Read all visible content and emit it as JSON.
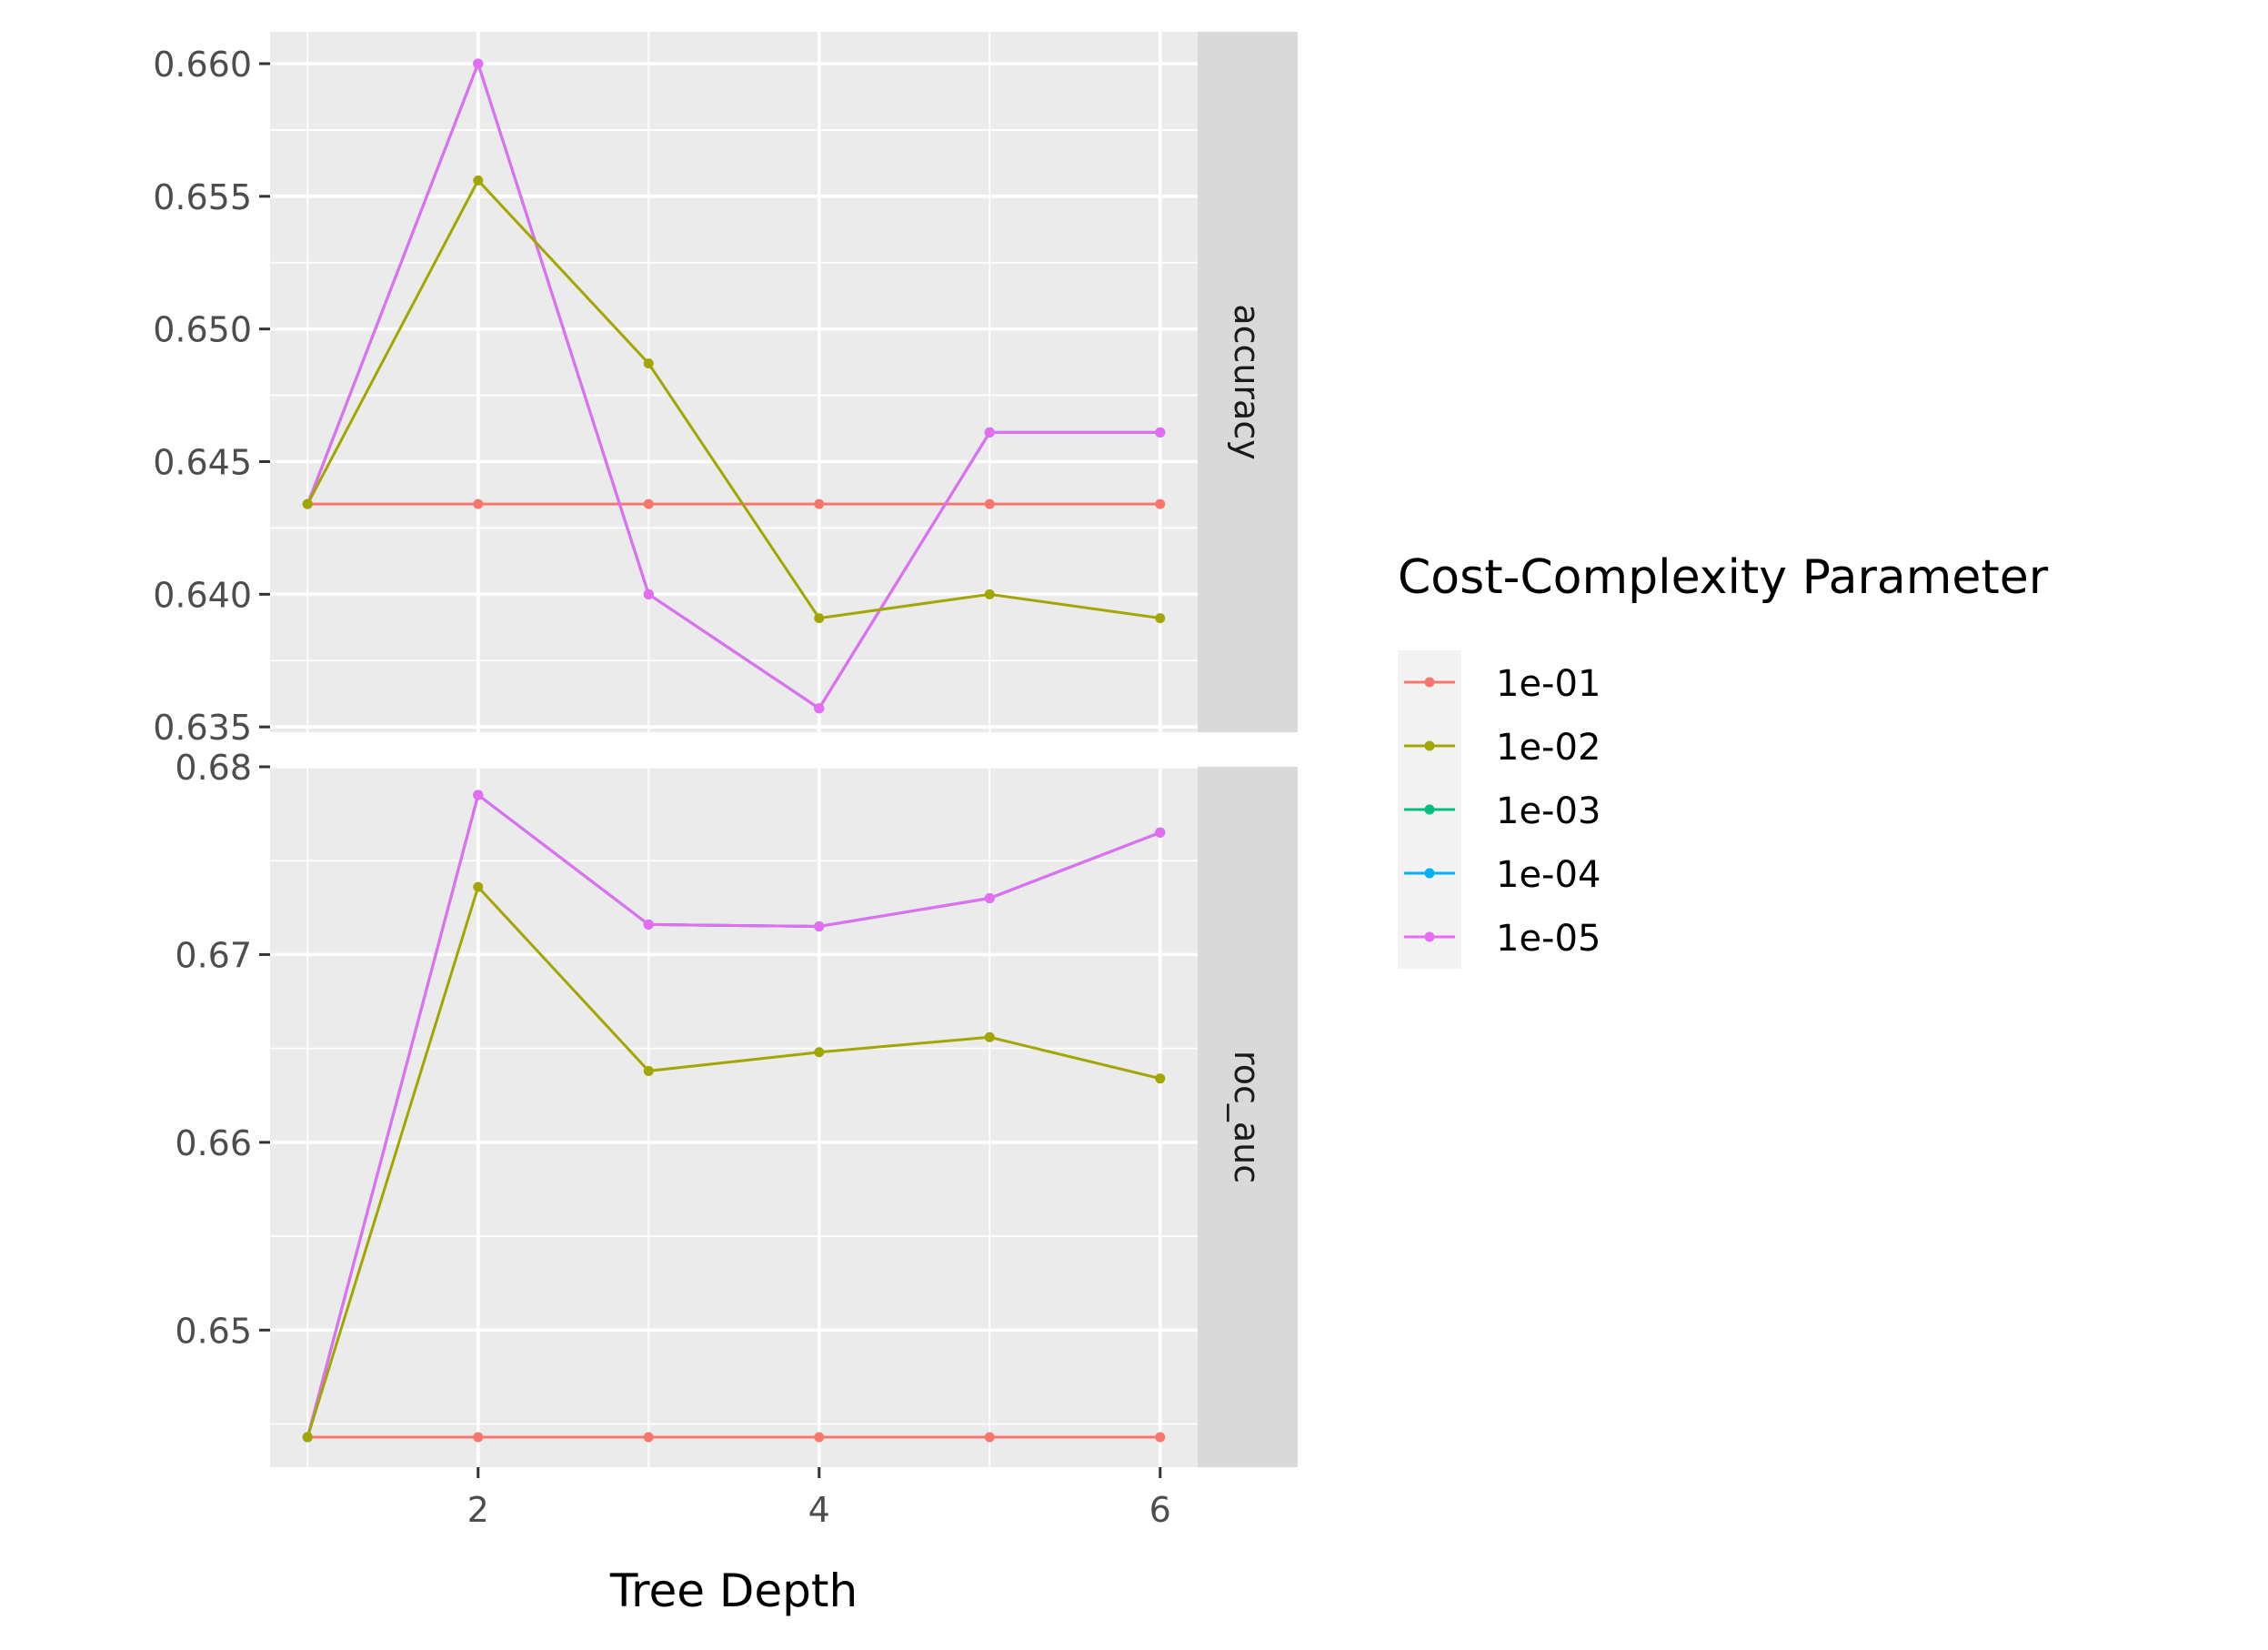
{
  "chart_data": {
    "type": "line",
    "xlabel": "Tree Depth",
    "x": [
      1,
      2,
      3,
      4,
      5,
      6
    ],
    "x_ticks": [
      "2",
      "4",
      "6"
    ],
    "x_tick_values": [
      2,
      4,
      6
    ],
    "xlim": [
      0.78,
      6.22
    ],
    "legend": {
      "title": "Cost-Complexity Parameter",
      "position": "right",
      "entries": [
        {
          "label": "1e-01",
          "color": "#F8766D"
        },
        {
          "label": "1e-02",
          "color": "#A3A500"
        },
        {
          "label": "1e-03",
          "color": "#00BF7D"
        },
        {
          "label": "1e-04",
          "color": "#00B0F6"
        },
        {
          "label": "1e-05",
          "color": "#E76BF3"
        }
      ]
    },
    "grid": true,
    "panels": [
      {
        "strip": "accuracy",
        "ylim": [
          0.6348,
          0.6612
        ],
        "y_ticks": [
          "0.635",
          "0.640",
          "0.645",
          "0.650",
          "0.655",
          "0.660"
        ],
        "y_tick_values": [
          0.635,
          0.64,
          0.645,
          0.65,
          0.655,
          0.66
        ],
        "series": [
          {
            "name": "1e-01",
            "color": "#F8766D",
            "values": [
              0.6434,
              0.6434,
              0.6434,
              0.6434,
              0.6434,
              0.6434
            ]
          },
          {
            "name": "1e-03",
            "color": "#00BF7D",
            "values": [
              0.6434,
              0.66,
              0.64,
              0.6357,
              0.6461,
              0.6461
            ]
          },
          {
            "name": "1e-04",
            "color": "#00B0F6",
            "values": [
              0.6434,
              0.66,
              0.64,
              0.6357,
              0.6461,
              0.6461
            ]
          },
          {
            "name": "1e-05",
            "color": "#E76BF3",
            "values": [
              0.6434,
              0.66,
              0.64,
              0.6357,
              0.6461,
              0.6461
            ]
          },
          {
            "name": "1e-02",
            "color": "#A3A500",
            "values": [
              0.6434,
              0.6556,
              0.6487,
              0.6391,
              0.64,
              0.6391
            ]
          }
        ]
      },
      {
        "strip": "roc_auc",
        "ylim": [
          0.6427,
          0.68
        ],
        "y_ticks": [
          "0.65",
          "0.66",
          "0.67",
          "0.68"
        ],
        "y_tick_values": [
          0.65,
          0.66,
          0.67,
          0.68
        ],
        "series": [
          {
            "name": "1e-01",
            "color": "#F8766D",
            "values": [
              0.6443,
              0.6443,
              0.6443,
              0.6443,
              0.6443,
              0.6443
            ]
          },
          {
            "name": "1e-03",
            "color": "#00BF7D",
            "values": [
              0.6443,
              0.6785,
              0.6716,
              0.6715,
              0.673,
              0.6765
            ]
          },
          {
            "name": "1e-04",
            "color": "#00B0F6",
            "values": [
              0.6443,
              0.6785,
              0.6716,
              0.6715,
              0.673,
              0.6765
            ]
          },
          {
            "name": "1e-05",
            "color": "#E76BF3",
            "values": [
              0.6443,
              0.6785,
              0.6716,
              0.6715,
              0.673,
              0.6765
            ]
          },
          {
            "name": "1e-02",
            "color": "#A3A500",
            "values": [
              0.6443,
              0.6736,
              0.6638,
              0.6648,
              0.6656,
              0.6634
            ]
          }
        ]
      }
    ]
  }
}
